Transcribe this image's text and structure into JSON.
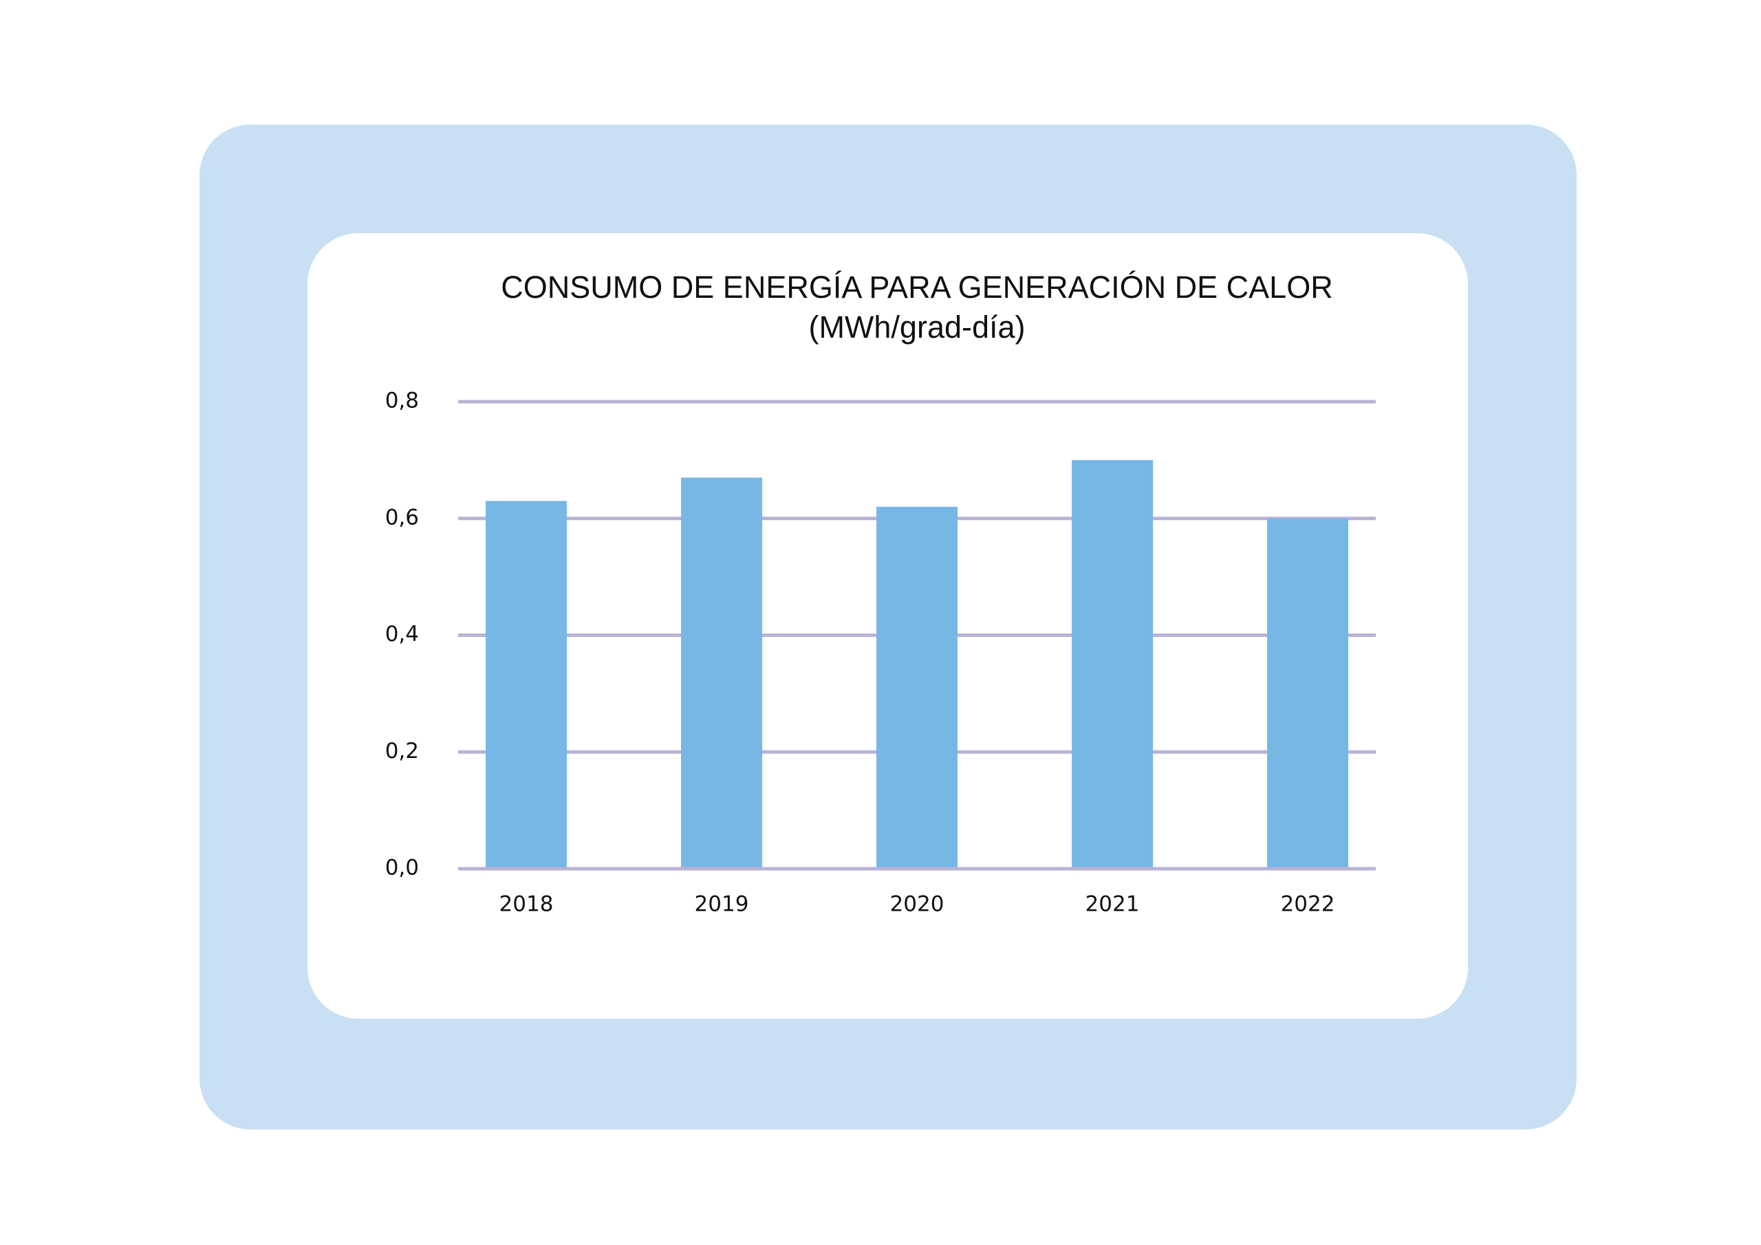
{
  "chart_data": {
    "type": "bar",
    "title": "CONSUMO DE ENERGÍA PARA GENERACIÓN DE CALOR",
    "subtitle": "(MWh/grad-día)",
    "categories": [
      "2018",
      "2019",
      "2020",
      "2021",
      "2022"
    ],
    "values": [
      0.63,
      0.67,
      0.62,
      0.7,
      0.6
    ],
    "color": "#77b7e6",
    "ylim": [
      0,
      0.8
    ],
    "yticks": [
      {
        "value": 0,
        "label": "0,0"
      },
      {
        "value": 0.2,
        "label": "0,2"
      },
      {
        "value": 0.4,
        "label": "0,4"
      },
      {
        "value": 0.6,
        "label": "0,6"
      },
      {
        "value": 0.8,
        "label": "0,8"
      }
    ],
    "grid": true
  }
}
